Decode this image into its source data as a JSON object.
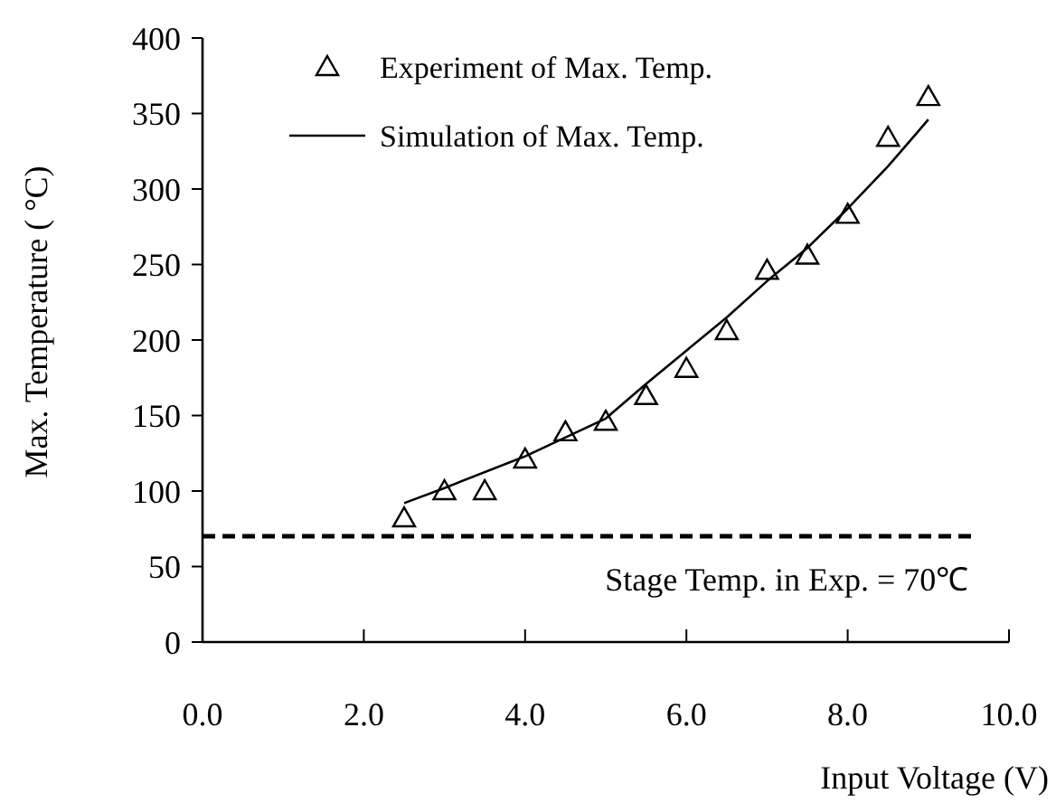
{
  "chart_data": {
    "type": "scatter",
    "xlabel": "Input Voltage (V)",
    "ylabel": "Max. Temperature ( °C)",
    "xlim": [
      0,
      10
    ],
    "xticks": [
      {
        "value": 0,
        "label": "0.0"
      },
      {
        "value": 2,
        "label": "2.0"
      },
      {
        "value": 4,
        "label": "4.0"
      },
      {
        "value": 6,
        "label": "6.0"
      },
      {
        "value": 8,
        "label": "8.0"
      },
      {
        "value": 10,
        "label": "10.0"
      }
    ],
    "ylim": [
      0,
      400
    ],
    "yticks": [
      0,
      50,
      100,
      150,
      200,
      250,
      300,
      350,
      400
    ],
    "series": [
      {
        "name": "Experiment of Max. Temp.",
        "type": "scatter",
        "marker": "triangle",
        "color": "#000000",
        "x": [
          2.5,
          3,
          3.5,
          4,
          4.5,
          5,
          5.5,
          6,
          6.5,
          7,
          7.5,
          8,
          8.5,
          9
        ],
        "values": [
          82,
          100,
          100,
          121,
          139,
          146,
          163,
          181,
          206,
          246,
          256,
          283,
          334,
          361
        ]
      },
      {
        "name": "Simulation of Max. Temp.",
        "type": "line",
        "marker": "none",
        "line_style": "solid",
        "color": "#000000",
        "x": [
          2.5,
          3,
          4,
          5,
          5.5,
          6,
          6.5,
          7,
          7.5,
          8,
          8.5,
          9
        ],
        "values": [
          92,
          102,
          123,
          148,
          171,
          193,
          215,
          239,
          261,
          287,
          315,
          346
        ]
      }
    ],
    "ref_lines": [
      {
        "axis": "y",
        "value": 70,
        "label": "Stage Temp. in Exp. = 70℃",
        "color": "#000000",
        "line_style": "dashed"
      }
    ],
    "legend": "top",
    "grid": false
  }
}
